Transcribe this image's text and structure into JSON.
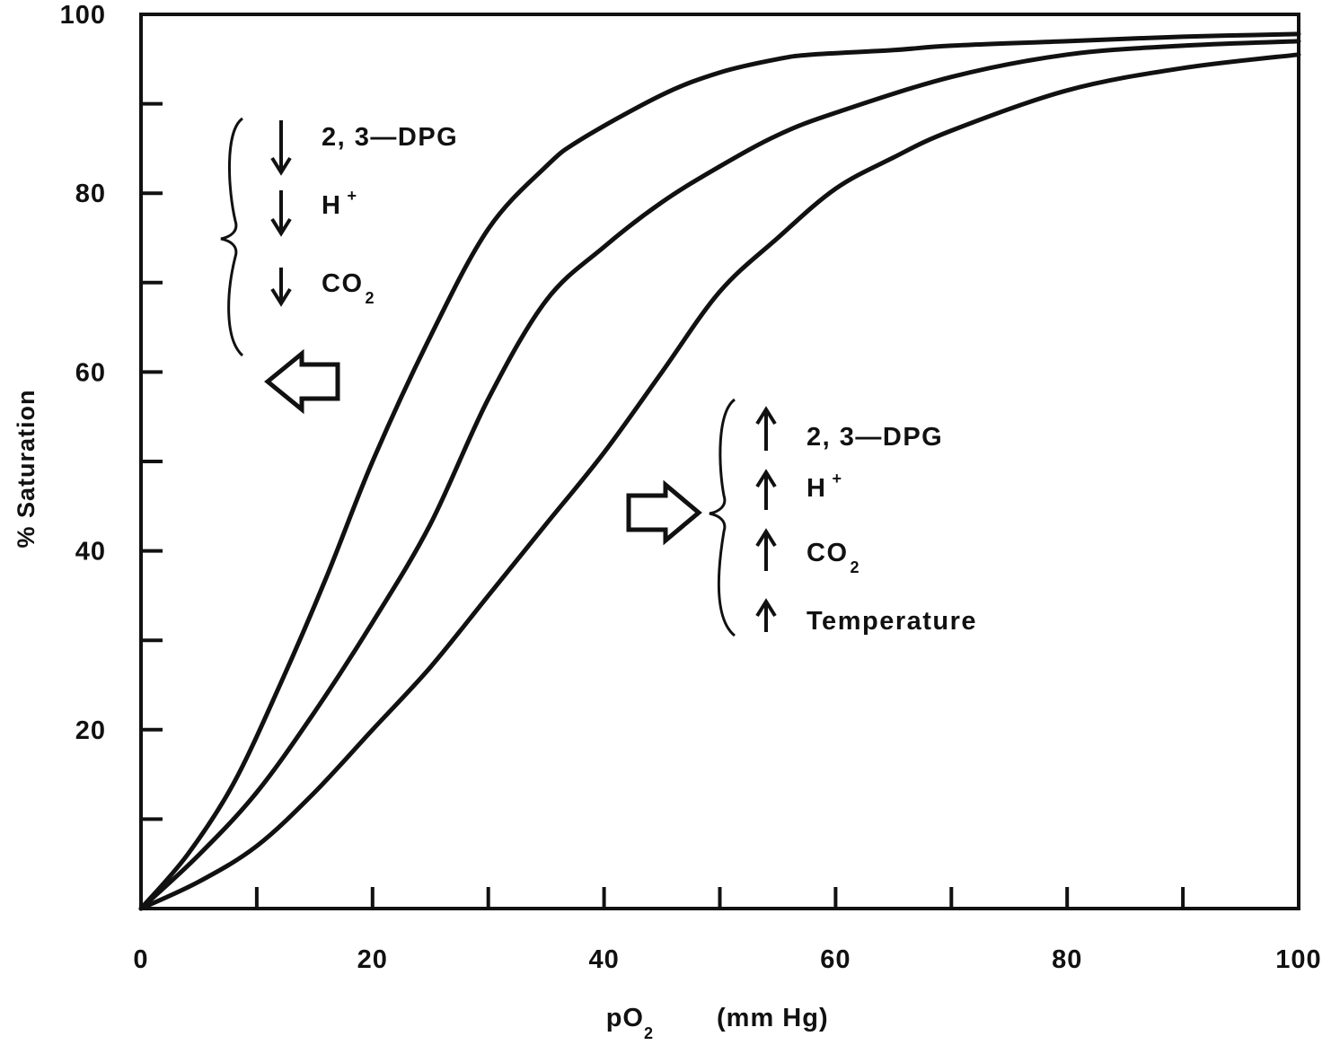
{
  "chart_data": {
    "type": "line",
    "xlabel": "pO",
    "xlabel_sub": "2",
    "xlabel_unit": "(mm Hg)",
    "ylabel": "% Saturation",
    "xlim": [
      0,
      100
    ],
    "ylim": [
      0,
      100
    ],
    "x_ticks": [
      0,
      20,
      40,
      60,
      80,
      100
    ],
    "y_ticks": [
      20,
      40,
      60,
      80,
      100
    ],
    "x_minor_step": 10,
    "y_minor_step": 10,
    "grid": false,
    "series": [
      {
        "x": [
          0,
          4,
          8,
          12,
          16,
          20,
          25,
          30,
          35,
          38,
          45,
          50,
          55,
          58,
          65,
          70,
          80,
          90,
          100
        ],
        "y": [
          0,
          6,
          14,
          25,
          37,
          50,
          64,
          76,
          83,
          86,
          91,
          93.5,
          95,
          95.5,
          96,
          96.5,
          97,
          97.5,
          97.8
        ]
      },
      {
        "x": [
          0,
          5,
          10,
          15,
          20,
          25,
          30,
          35,
          40,
          45,
          50,
          55,
          60,
          70,
          80,
          90,
          100
        ],
        "y": [
          0,
          6,
          13,
          22,
          32,
          43,
          57,
          68,
          74,
          79,
          83,
          86.5,
          89,
          93,
          95.5,
          96.5,
          97
        ]
      },
      {
        "x": [
          0,
          5,
          10,
          15,
          20,
          25,
          30,
          35,
          40,
          45,
          50,
          55,
          60,
          65,
          70,
          80,
          90,
          100
        ],
        "y": [
          0,
          3,
          7,
          13,
          20,
          27,
          35,
          43,
          51,
          60,
          69,
          75,
          80.5,
          84,
          87,
          91.5,
          94,
          95.5
        ]
      }
    ],
    "annotations": {
      "left": {
        "items": [
          {
            "dir": "down",
            "text": "2, 3—DPG",
            "sup": "",
            "sub": ""
          },
          {
            "dir": "down",
            "text": "H",
            "sup": "+",
            "sub": ""
          },
          {
            "dir": "down",
            "text": "CO",
            "sup": "",
            "sub": "2"
          }
        ],
        "shift_arrow": "left"
      },
      "right": {
        "items": [
          {
            "dir": "up",
            "text": "2, 3—DPG",
            "sup": "",
            "sub": ""
          },
          {
            "dir": "up",
            "text": "H",
            "sup": "+",
            "sub": ""
          },
          {
            "dir": "up",
            "text": "CO",
            "sup": "",
            "sub": "2"
          },
          {
            "dir": "up",
            "text": "Temperature",
            "sup": "",
            "sub": ""
          }
        ],
        "shift_arrow": "right"
      }
    }
  }
}
